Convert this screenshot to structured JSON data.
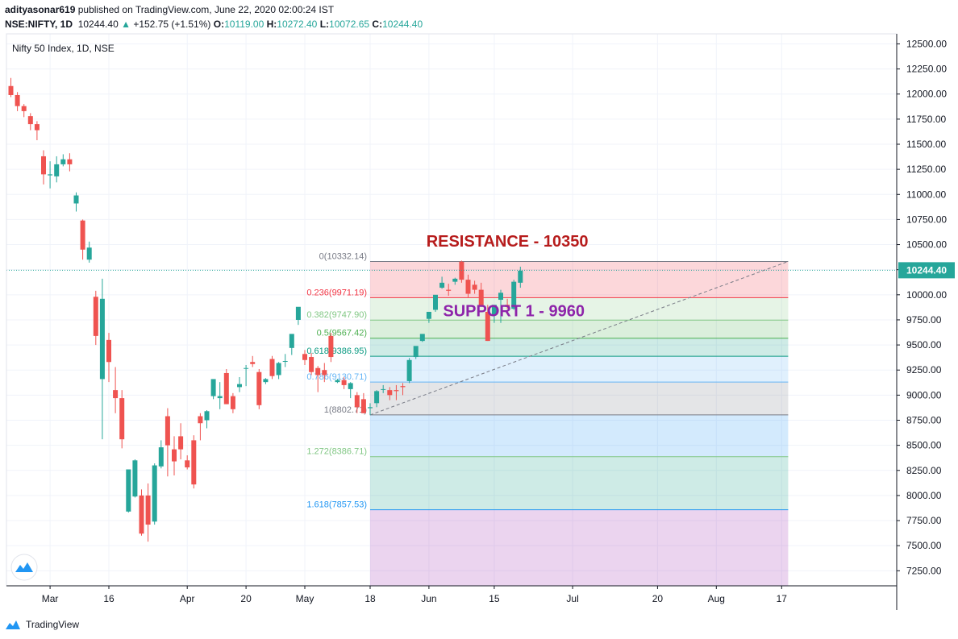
{
  "header": {
    "publisher": "adityasonar619",
    "published_text": " published on TradingView.com, June 22, 2020 02:00:24 IST",
    "symbol": "NSE:NIFTY, 1D",
    "last": "10244.40",
    "change": "+152.75 (+1.51%)",
    "o_label": "O:",
    "o": "10119.00",
    "h_label": "H:",
    "h": "10272.40",
    "l_label": "L:",
    "l": "10072.65",
    "c_label": "C:",
    "c": "10244.40"
  },
  "chart_title": "Nifty 50 Index, 1D, NSE",
  "footer": {
    "brand": "TradingView"
  },
  "colors": {
    "up": "#26a69a",
    "down": "#ef5350",
    "grid": "#f0f3fa",
    "axis": "#131722",
    "resistance": "#b71c1c",
    "support": "#8e24aa"
  },
  "chart_data": {
    "type": "candlestick",
    "ylim": [
      7100,
      12600
    ],
    "yticks": [
      "12500.00",
      "12250.00",
      "12000.00",
      "11750.00",
      "11500.00",
      "11250.00",
      "11000.00",
      "10750.00",
      "10500.00",
      "10250.00",
      "10000.00",
      "9750.00",
      "9500.00",
      "9250.00",
      "9000.00",
      "8750.00",
      "8500.00",
      "8250.00",
      "8000.00",
      "7750.00",
      "7500.00",
      "7250.00"
    ],
    "ytick_values": [
      12500,
      12250,
      12000,
      11750,
      11500,
      11250,
      11000,
      10750,
      10500,
      10250,
      10000,
      9750,
      9500,
      9250,
      9000,
      8750,
      8500,
      8250,
      8000,
      7750,
      7500,
      7250
    ],
    "xticks": [
      {
        "label": "Mar",
        "slot": 6
      },
      {
        "label": "16",
        "slot": 15
      },
      {
        "label": "Apr",
        "slot": 27
      },
      {
        "label": "20",
        "slot": 36
      },
      {
        "label": "May",
        "slot": 45
      },
      {
        "label": "18",
        "slot": 55
      },
      {
        "label": "Jun",
        "slot": 64
      },
      {
        "label": "15",
        "slot": 74
      },
      {
        "label": "Jul",
        "slot": 86
      },
      {
        "label": "20",
        "slot": 99
      },
      {
        "label": "Aug",
        "slot": 108
      },
      {
        "label": "17",
        "slot": 118
      }
    ],
    "candles": [
      [
        12080,
        12160,
        11970,
        11990
      ],
      [
        11990,
        12020,
        11830,
        11880
      ],
      [
        11880,
        11900,
        11770,
        11830
      ],
      [
        11780,
        11810,
        11640,
        11700
      ],
      [
        11700,
        11730,
        11540,
        11640
      ],
      [
        11380,
        11440,
        11100,
        11200
      ],
      [
        11190,
        11330,
        11060,
        11200
      ],
      [
        11180,
        11380,
        11120,
        11300
      ],
      [
        11300,
        11400,
        11280,
        11350
      ],
      [
        11350,
        11410,
        11230,
        11300
      ],
      [
        10910,
        11020,
        10830,
        10990
      ],
      [
        10740,
        10750,
        10350,
        10450
      ],
      [
        10350,
        10530,
        10320,
        10470
      ],
      [
        9980,
        10040,
        9500,
        9590
      ],
      [
        9160,
        10160,
        8560,
        9960
      ],
      [
        9550,
        9620,
        9130,
        9330
      ],
      [
        9050,
        9280,
        8820,
        8970
      ],
      [
        8970,
        9050,
        8470,
        8560
      ],
      [
        7840,
        8230,
        7830,
        8260
      ],
      [
        7990,
        8360,
        7980,
        8350
      ],
      [
        8000,
        8060,
        7600,
        7620
      ],
      [
        8000,
        8120,
        7540,
        7710
      ],
      [
        7740,
        8320,
        7710,
        8300
      ],
      [
        8290,
        8550,
        8270,
        8480
      ],
      [
        8790,
        8870,
        8190,
        8500
      ],
      [
        8460,
        8590,
        8200,
        8340
      ],
      [
        8590,
        8720,
        8360,
        8460
      ],
      [
        8350,
        8400,
        8260,
        8280
      ],
      [
        8550,
        8600,
        8070,
        8110
      ],
      [
        8790,
        8820,
        8550,
        8720
      ],
      [
        8750,
        8850,
        8670,
        8840
      ],
      [
        8990,
        9150,
        8960,
        9160
      ],
      [
        8970,
        9130,
        8860,
        8990
      ],
      [
        9220,
        9260,
        8910,
        8910
      ],
      [
        8990,
        9020,
        8820,
        8860
      ],
      [
        9080,
        9180,
        9030,
        9110
      ],
      [
        9270,
        9300,
        9090,
        9270
      ],
      [
        9330,
        9390,
        9280,
        9310
      ],
      [
        9230,
        9260,
        8860,
        8900
      ],
      [
        9130,
        9170,
        9110,
        9160
      ],
      [
        9360,
        9390,
        9160,
        9190
      ],
      [
        9200,
        9330,
        9160,
        9320
      ],
      [
        9340,
        9410,
        9280,
        9340
      ],
      [
        9470,
        9590,
        9400,
        9610
      ],
      [
        9750,
        9870,
        9700,
        9880
      ],
      [
        9410,
        9450,
        9300,
        9350
      ],
      [
        9380,
        9420,
        9200,
        9230
      ],
      [
        9270,
        9290,
        9030,
        9200
      ],
      [
        9250,
        9320,
        9130,
        9200
      ],
      [
        9590,
        9620,
        9330,
        9380
      ],
      [
        9130,
        9160,
        9120,
        9150
      ],
      [
        9150,
        9180,
        9060,
        9100
      ],
      [
        9060,
        9130,
        8970,
        9120
      ],
      [
        9000,
        9030,
        8820,
        8880
      ],
      [
        8960,
        9020,
        8820,
        8820
      ],
      [
        8870,
        8920,
        8800,
        8880
      ],
      [
        8920,
        9050,
        8880,
        9040
      ],
      [
        9060,
        9100,
        9020,
        9060
      ],
      [
        9050,
        9080,
        8950,
        9000
      ],
      [
        9050,
        9100,
        8950,
        9040
      ],
      [
        9090,
        9120,
        9000,
        9080
      ],
      [
        9140,
        9370,
        9120,
        9350
      ],
      [
        9380,
        9460,
        9360,
        9490
      ],
      [
        9540,
        9600,
        9530,
        9610
      ],
      [
        9760,
        9810,
        9720,
        9830
      ],
      [
        9850,
        9970,
        9830,
        10000
      ],
      [
        10070,
        10180,
        10060,
        10120
      ],
      [
        10050,
        10110,
        9990,
        10040
      ],
      [
        10130,
        10170,
        10100,
        10160
      ],
      [
        10330,
        10340,
        10120,
        10150
      ],
      [
        10150,
        10200,
        9970,
        10010
      ],
      [
        10100,
        10140,
        10010,
        10050
      ],
      [
        10050,
        10120,
        9880,
        9890
      ],
      [
        9830,
        9900,
        9540,
        9540
      ],
      [
        9800,
        9870,
        9720,
        9900
      ],
      [
        9950,
        10050,
        9720,
        10020
      ],
      [
        9900,
        9960,
        9860,
        9880
      ],
      [
        9860,
        10150,
        9850,
        10130
      ],
      [
        10120,
        10280,
        10070,
        10240
      ]
    ],
    "fib": {
      "levels": [
        {
          "label": "0(10332.14)",
          "value": 10332.14,
          "color": "#787b86",
          "fill": "rgba(242,54,69,0.2)"
        },
        {
          "label": "0.236(9971.19)",
          "value": 9971.19,
          "color": "#f23645",
          "fill": "rgba(129,199,132,0.2)"
        },
        {
          "label": "0.382(9747.90)",
          "value": 9747.9,
          "color": "#81c784",
          "fill": "rgba(76,175,80,0.2)"
        },
        {
          "label": "0.5(9567.42)",
          "value": 9567.42,
          "color": "#4caf50",
          "fill": "rgba(8,153,129,0.2)"
        },
        {
          "label": "0.618(9386.95)",
          "value": 9386.95,
          "color": "#089981",
          "fill": "rgba(100,181,246,0.2)"
        },
        {
          "label": "0.786(9130.71)",
          "value": 9130.71,
          "color": "#64b5f6",
          "fill": "rgba(120,123,134,0.2)"
        },
        {
          "label": "1(8802.71)",
          "value": 8802.71,
          "color": "#787b86",
          "fill": "rgba(33,150,243,0.2)"
        },
        {
          "label": "1.272(8386.71)",
          "value": 8386.71,
          "color": "#81c784",
          "fill": "rgba(8,153,129,0.2)"
        },
        {
          "label": "1.618(7857.53)",
          "value": 7857.53,
          "color": "#2196f3",
          "fill": "rgba(156,39,176,0.2)"
        }
      ],
      "trend_start": {
        "slot": 55,
        "value": 8802.71
      },
      "trend_end": {
        "slot": 119,
        "value": 10332.14
      }
    },
    "last_price": {
      "value": 10244.4,
      "label": "10244.40"
    },
    "annotations": [
      {
        "text": "RESISTANCE - 10350",
        "slot": 76,
        "value": 10480,
        "color": "#b71c1c"
      },
      {
        "text": "SUPPORT 1 - 9960",
        "slot": 77,
        "value": 9785,
        "color": "#8e24aa"
      }
    ]
  }
}
